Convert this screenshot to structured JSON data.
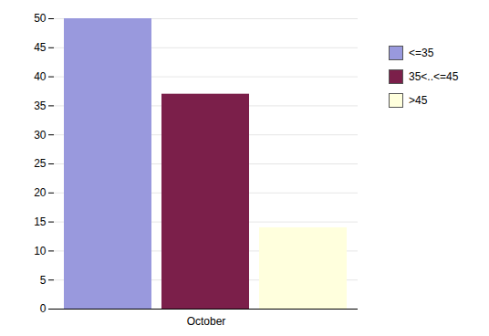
{
  "chart_data": {
    "type": "bar",
    "categories": [
      "October"
    ],
    "series": [
      {
        "name": "<=35",
        "color": "#9999dd",
        "values": [
          50
        ]
      },
      {
        "name": "35<..<=45",
        "color": "#7b1f4a",
        "values": [
          37
        ]
      },
      {
        "name": ">45",
        "color": "#ffffdd",
        "values": [
          14
        ]
      }
    ],
    "ylim": [
      0,
      50
    ],
    "yticks": [
      0,
      5,
      10,
      15,
      20,
      25,
      30,
      35,
      40,
      45,
      50
    ],
    "grid": true,
    "legend": "right"
  }
}
